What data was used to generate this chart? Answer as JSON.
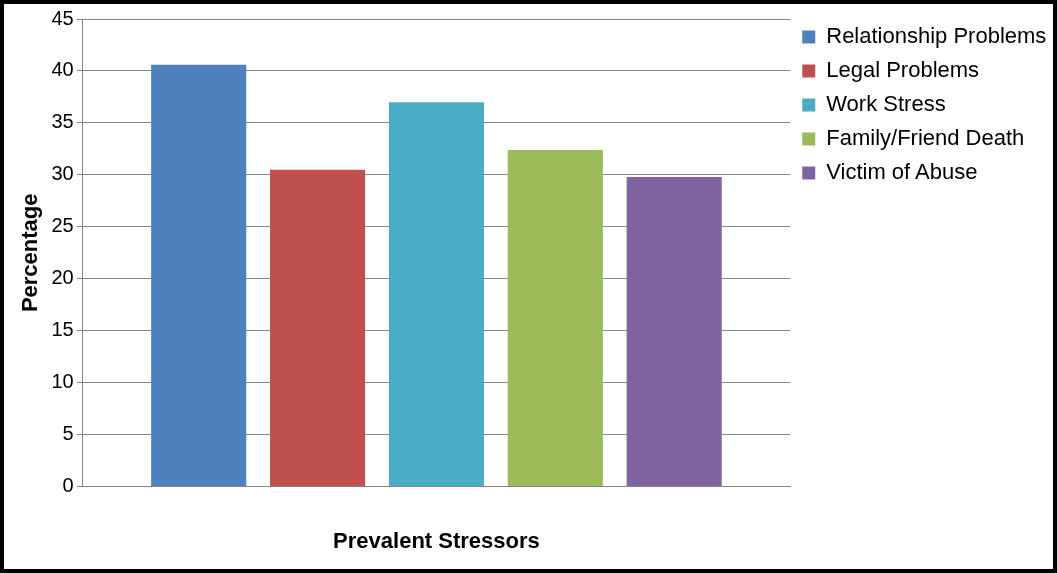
{
  "chart_data": {
    "type": "bar",
    "xlabel": "Prevalent Stressors",
    "ylabel": "Percentage",
    "categories": [
      null
    ],
    "series": [
      {
        "name": "Relationship Problems",
        "color": "#4f81bd",
        "values": [
          40.6
        ]
      },
      {
        "name": "Legal Problems",
        "color": "#c0504d",
        "values": [
          30.5
        ]
      },
      {
        "name": "Work Stress",
        "color": "#4bacc6",
        "values": [
          37.0
        ]
      },
      {
        "name": "Family/Friend Death",
        "color": "#9bbb59",
        "values": [
          32.4
        ]
      },
      {
        "name": "Victim of Abuse",
        "color": "#8064a2",
        "values": [
          29.8
        ]
      }
    ],
    "ylim": [
      0,
      45
    ],
    "yticks": [
      0,
      5,
      10,
      15,
      20,
      25,
      30,
      35,
      40,
      45
    ],
    "grid": "y",
    "legend": "top right"
  }
}
